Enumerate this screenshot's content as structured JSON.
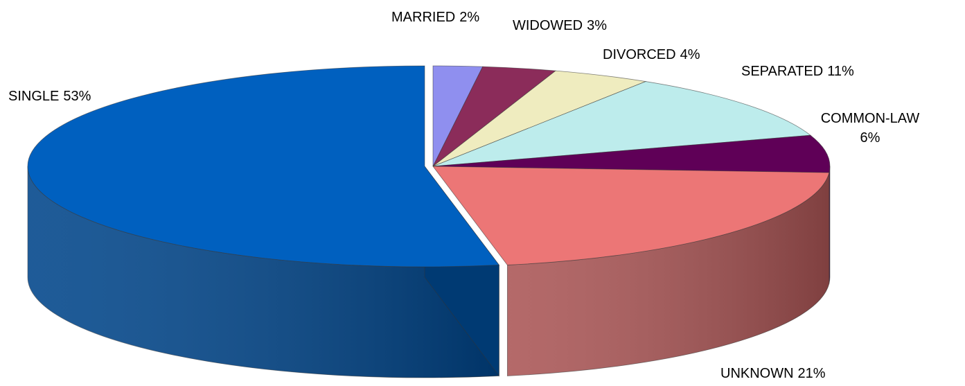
{
  "chart_data": {
    "type": "pie",
    "categories": [
      "MARRIED",
      "WIDOWED",
      "DIVORCED",
      "SEPARATED",
      "COMMON-LAW",
      "UNKNOWN",
      "SINGLE"
    ],
    "values": [
      2,
      3,
      4,
      11,
      6,
      21,
      53
    ],
    "value_labels": [
      "2%",
      "3%",
      "4%",
      "11%",
      "6%",
      "21%",
      "53%"
    ],
    "colors": [
      "#8f8fef",
      "#8b2c5a",
      "#efecbf",
      "#bdecec",
      "#5f0057",
      "#ec7676",
      "#0060bf"
    ]
  }
}
